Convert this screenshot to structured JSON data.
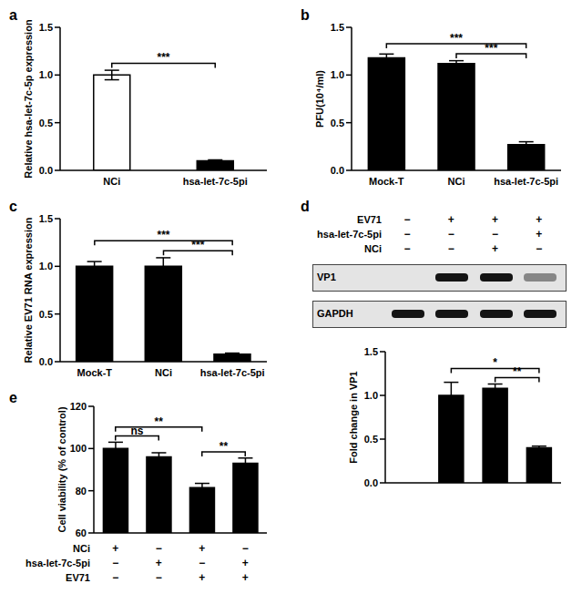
{
  "chart_data": [
    {
      "type": "bar",
      "title": "a",
      "y_label": "Relative hsa-let-7c-5p expression",
      "categories": [
        "NCi",
        "hsa-let-7c-5pi"
      ],
      "values": [
        1.0,
        0.1
      ],
      "errors": [
        0.05,
        0.01
      ],
      "colors": [
        "#ffffff",
        "#000000"
      ],
      "ylim": [
        0,
        1.5
      ],
      "yticks": [
        {
          "value": 0,
          "label": "0.0"
        },
        0.5,
        {
          "value": 1,
          "label": "1.0"
        },
        1.5
      ],
      "annotations": [
        {
          "text": "***",
          "between": [
            "NCi",
            "hsa-let-7c-5pi"
          ]
        }
      ]
    },
    {
      "type": "bar",
      "title": "b",
      "y_label": "PFU(10⁴/ml)",
      "categories": [
        "Mock-T",
        "NCi",
        "hsa-let-7c-5pi"
      ],
      "values": [
        1.18,
        1.12,
        0.27
      ],
      "errors": [
        0.04,
        0.03,
        0.03
      ],
      "color": "#000000",
      "ylim": [
        0,
        1.5
      ],
      "yticks": [
        {
          "value": 0,
          "label": "0.0"
        },
        0.5,
        {
          "value": 1,
          "label": "1.0"
        },
        1.5
      ],
      "annotations": [
        {
          "text": "***",
          "between": [
            "NCi",
            "hsa-let-7c-5pi"
          ]
        },
        {
          "text": "***",
          "between": [
            "Mock-T",
            "hsa-let-7c-5pi"
          ]
        }
      ]
    },
    {
      "type": "bar",
      "title": "c",
      "y_label": "Relative EV71 RNA expression",
      "categories": [
        "Mock-T",
        "NCi",
        "hsa-let-7c-5pi"
      ],
      "values": [
        1.0,
        1.0,
        0.08
      ],
      "errors": [
        0.05,
        0.09,
        0.01
      ],
      "color": "#000000",
      "ylim": [
        0,
        1.5
      ],
      "yticks": [
        {
          "value": 0,
          "label": "0.0"
        },
        0.5,
        {
          "value": 1,
          "label": "1.0"
        },
        1.5
      ],
      "annotations": [
        {
          "text": "***",
          "between": [
            "NCi",
            "hsa-let-7c-5pi"
          ]
        },
        {
          "text": "***",
          "between": [
            "Mock-T",
            "hsa-let-7c-5pi"
          ]
        }
      ]
    },
    {
      "type": "bar",
      "title": "d",
      "y_label": "Fold change in VP1",
      "categories": [
        null,
        null,
        null,
        null
      ],
      "values": [
        null,
        1.0,
        1.08,
        0.4
      ],
      "errors": [
        null,
        0.15,
        0.05,
        0.02
      ],
      "color": "#000000",
      "ylim": [
        0,
        1.5
      ],
      "tick_labels": "y",
      "yticks": [
        {
          "value": 0,
          "label": "0.0"
        },
        0.5,
        {
          "value": 1,
          "label": "1.0"
        },
        1.5
      ],
      "conditions": [
        {
          "label": "EV71",
          "signs": [
            "−",
            "+",
            "+",
            "+"
          ]
        },
        {
          "label": "hsa-let-7c-5pi",
          "signs": [
            "−",
            "−",
            "−",
            "+"
          ]
        },
        {
          "label": "NCi",
          "signs": [
            "−",
            "−",
            "+",
            "−"
          ]
        }
      ],
      "blot_bands": [
        "VP1",
        "GAPDH"
      ],
      "annotations": [
        {
          "text": "**",
          "between": [
            2,
            3
          ]
        },
        {
          "text": "*",
          "between": [
            1,
            3
          ]
        }
      ]
    },
    {
      "type": "bar",
      "title": "e",
      "y_label": "Cell viability (% of control)",
      "categories": [
        null,
        null,
        null,
        null
      ],
      "values": [
        100,
        96,
        81.5,
        93
      ],
      "errors": [
        3,
        2,
        2,
        2.5
      ],
      "color": "#000000",
      "ylim": [
        60,
        120
      ],
      "yticks": [
        60,
        80,
        100,
        120
      ],
      "tick_labels": "y",
      "conditions": [
        {
          "label": "NCi",
          "signs": [
            "+",
            "−",
            "+",
            "−"
          ]
        },
        {
          "label": "hsa-let-7c-5pi",
          "signs": [
            "−",
            "+",
            "−",
            "+"
          ]
        },
        {
          "label": "EV71",
          "signs": [
            "−",
            "−",
            "+",
            "+"
          ]
        }
      ],
      "annotations": [
        {
          "text": "ns",
          "between": [
            0,
            1
          ]
        },
        {
          "text": "**",
          "between": [
            2,
            3
          ]
        },
        {
          "text": "**",
          "between": [
            0,
            2
          ]
        }
      ]
    }
  ]
}
